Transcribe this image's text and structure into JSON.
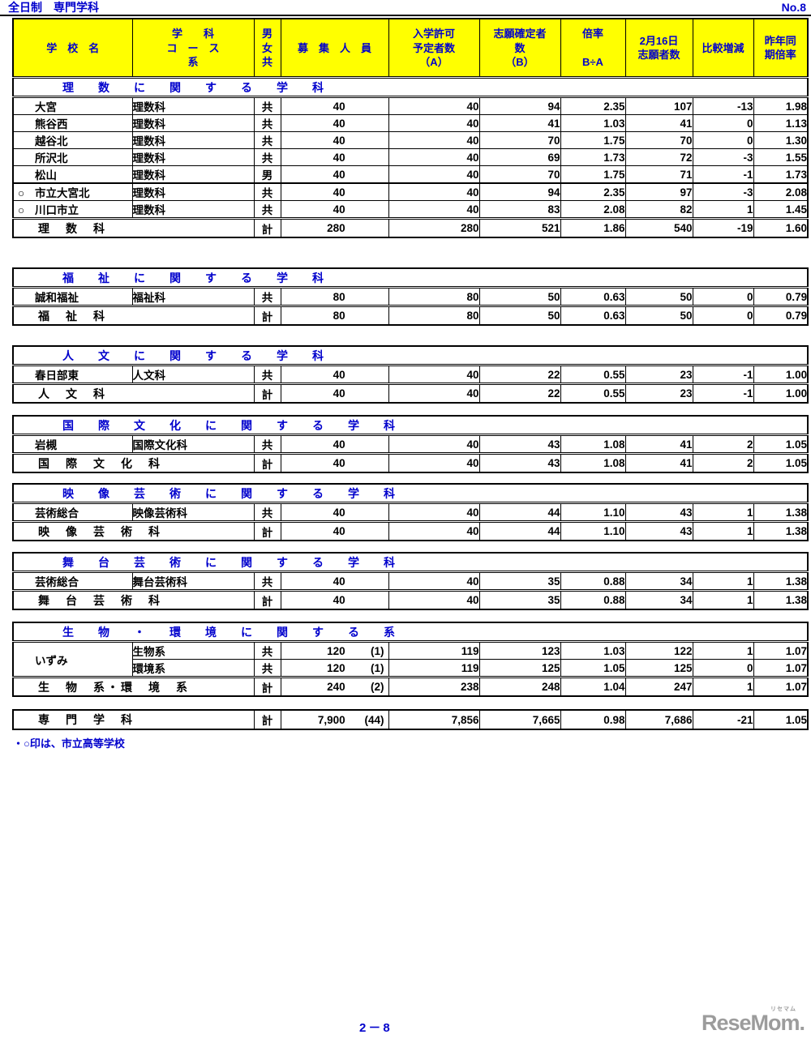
{
  "page": {
    "title": "全日制　専門学科",
    "no": "No.8",
    "footnote": "・○印は、市立高等学校",
    "page_number": "2－8"
  },
  "logo": {
    "text": "ReseMom.",
    "ruby": "リセマム"
  },
  "colors": {
    "header_bg": "#ffff00",
    "accent_blue": "#0000cc",
    "border_black": "#000000",
    "logo_gray": "#9c9c9c"
  },
  "columns": [
    {
      "id": "school",
      "lines": [
        "学　校　名"
      ]
    },
    {
      "id": "course",
      "lines": [
        "学　　科",
        "コ　ー　ス",
        "系"
      ]
    },
    {
      "id": "gender",
      "lines": [
        "男",
        "女",
        "共"
      ]
    },
    {
      "id": "recruit",
      "lines": [
        "募　集　人　員"
      ]
    },
    {
      "id": "admit",
      "lines": [
        "入学許可",
        "予定者数",
        "（A）"
      ]
    },
    {
      "id": "confirmed",
      "lines": [
        "志願確定者",
        "数",
        "（B）"
      ]
    },
    {
      "id": "ratio",
      "lines": [
        "倍率",
        "",
        "B÷A"
      ]
    },
    {
      "id": "feb16",
      "lines": [
        "2月16日",
        "志願者数"
      ]
    },
    {
      "id": "change",
      "lines": [
        "比較増減"
      ]
    },
    {
      "id": "lastyear",
      "lines": [
        "昨年同",
        "期倍率"
      ]
    }
  ],
  "municipal_marker": "○",
  "sections": [
    {
      "title": "理　数　に　関　す　る　学　科",
      "rows": [
        {
          "prefix": "",
          "school": "大宮",
          "course": "理数科",
          "gender": "共",
          "recruit": "40",
          "recruit_note": "",
          "admit": "40",
          "confirmed": "94",
          "ratio": "2.35",
          "feb16": "107",
          "change": "-13",
          "lastyear": "1.98"
        },
        {
          "prefix": "",
          "school": "熊谷西",
          "course": "理数科",
          "gender": "共",
          "recruit": "40",
          "recruit_note": "",
          "admit": "40",
          "confirmed": "41",
          "ratio": "1.03",
          "feb16": "41",
          "change": "0",
          "lastyear": "1.13"
        },
        {
          "prefix": "",
          "school": "越谷北",
          "course": "理数科",
          "gender": "共",
          "recruit": "40",
          "recruit_note": "",
          "admit": "40",
          "confirmed": "70",
          "ratio": "1.75",
          "feb16": "70",
          "change": "0",
          "lastyear": "1.30"
        },
        {
          "prefix": "",
          "school": "所沢北",
          "course": "理数科",
          "gender": "共",
          "recruit": "40",
          "recruit_note": "",
          "admit": "40",
          "confirmed": "69",
          "ratio": "1.73",
          "feb16": "72",
          "change": "-3",
          "lastyear": "1.55"
        },
        {
          "prefix": "",
          "school": "松山",
          "course": "理数科",
          "gender": "男",
          "recruit": "40",
          "recruit_note": "",
          "admit": "40",
          "confirmed": "70",
          "ratio": "1.75",
          "feb16": "71",
          "change": "-1",
          "lastyear": "1.73"
        },
        {
          "prefix": "○",
          "school": "市立大宮北",
          "course": "理数科",
          "gender": "共",
          "recruit": "40",
          "recruit_note": "",
          "admit": "40",
          "confirmed": "94",
          "ratio": "2.35",
          "feb16": "97",
          "change": "-3",
          "lastyear": "2.08",
          "separator_above": true
        },
        {
          "prefix": "○",
          "school": "川口市立",
          "course": "理数科",
          "gender": "共",
          "recruit": "40",
          "recruit_note": "",
          "admit": "40",
          "confirmed": "83",
          "ratio": "2.08",
          "feb16": "82",
          "change": "1",
          "lastyear": "1.45"
        }
      ],
      "total": {
        "label": "理　数　科",
        "gender": "計",
        "recruit": "280",
        "recruit_note": "",
        "admit": "280",
        "confirmed": "521",
        "ratio": "1.86",
        "feb16": "540",
        "change": "-19",
        "lastyear": "1.60"
      }
    },
    {
      "title": "福　祉　に　関　す　る　学　科",
      "rows": [
        {
          "prefix": "",
          "school": "誠和福祉",
          "course": "福祉科",
          "gender": "共",
          "recruit": "80",
          "recruit_note": "",
          "admit": "80",
          "confirmed": "50",
          "ratio": "0.63",
          "feb16": "50",
          "change": "0",
          "lastyear": "0.79"
        }
      ],
      "total": {
        "label": "福　祉　科",
        "gender": "計",
        "recruit": "80",
        "recruit_note": "",
        "admit": "80",
        "confirmed": "50",
        "ratio": "0.63",
        "feb16": "50",
        "change": "0",
        "lastyear": "0.79"
      }
    },
    {
      "title": "人　文　に　関　す　る　学　科",
      "rows": [
        {
          "prefix": "",
          "school": "春日部東",
          "course": "人文科",
          "gender": "共",
          "recruit": "40",
          "recruit_note": "",
          "admit": "40",
          "confirmed": "22",
          "ratio": "0.55",
          "feb16": "23",
          "change": "-1",
          "lastyear": "1.00"
        }
      ],
      "total": {
        "label": "人　文　科",
        "gender": "計",
        "recruit": "40",
        "recruit_note": "",
        "admit": "40",
        "confirmed": "22",
        "ratio": "0.55",
        "feb16": "23",
        "change": "-1",
        "lastyear": "1.00"
      }
    },
    {
      "title": "国　際　文　化　に　関　す　る　学　科",
      "rows": [
        {
          "prefix": "",
          "school": "岩槻",
          "course": "国際文化科",
          "gender": "共",
          "recruit": "40",
          "recruit_note": "",
          "admit": "40",
          "confirmed": "43",
          "ratio": "1.08",
          "feb16": "41",
          "change": "2",
          "lastyear": "1.05"
        }
      ],
      "total": {
        "label": "国　際　文　化　科",
        "gender": "計",
        "recruit": "40",
        "recruit_note": "",
        "admit": "40",
        "confirmed": "43",
        "ratio": "1.08",
        "feb16": "41",
        "change": "2",
        "lastyear": "1.05"
      }
    },
    {
      "title": "映　像　芸　術　に　関　す　る　学　科",
      "rows": [
        {
          "prefix": "",
          "school": "芸術総合",
          "course": "映像芸術科",
          "gender": "共",
          "recruit": "40",
          "recruit_note": "",
          "admit": "40",
          "confirmed": "44",
          "ratio": "1.10",
          "feb16": "43",
          "change": "1",
          "lastyear": "1.38"
        }
      ],
      "total": {
        "label": "映　像　芸　術　科",
        "gender": "計",
        "recruit": "40",
        "recruit_note": "",
        "admit": "40",
        "confirmed": "44",
        "ratio": "1.10",
        "feb16": "43",
        "change": "1",
        "lastyear": "1.38"
      }
    },
    {
      "title": "舞　台　芸　術　に　関　す　る　学　科",
      "rows": [
        {
          "prefix": "",
          "school": "芸術総合",
          "course": "舞台芸術科",
          "gender": "共",
          "recruit": "40",
          "recruit_note": "",
          "admit": "40",
          "confirmed": "35",
          "ratio": "0.88",
          "feb16": "34",
          "change": "1",
          "lastyear": "1.38"
        }
      ],
      "total": {
        "label": "舞　台　芸　術　科",
        "gender": "計",
        "recruit": "40",
        "recruit_note": "",
        "admit": "40",
        "confirmed": "35",
        "ratio": "0.88",
        "feb16": "34",
        "change": "1",
        "lastyear": "1.38"
      }
    },
    {
      "title": "生　物　・　環　境　に　関　す　る　系",
      "rows": [
        {
          "prefix": "",
          "school": "いずみ",
          "school_rowspan": 2,
          "course": "生物系",
          "gender": "共",
          "recruit": "120",
          "recruit_note": "(1)",
          "admit": "119",
          "confirmed": "123",
          "ratio": "1.03",
          "feb16": "122",
          "change": "1",
          "lastyear": "1.07"
        },
        {
          "prefix": "",
          "school": "",
          "skip_school": true,
          "course": "環境系",
          "gender": "共",
          "recruit": "120",
          "recruit_note": "(1)",
          "admit": "119",
          "confirmed": "125",
          "ratio": "1.05",
          "feb16": "125",
          "change": "0",
          "lastyear": "1.07"
        }
      ],
      "total": {
        "label": "生　物　系・環　境　系",
        "gender": "計",
        "recruit": "240",
        "recruit_note": "(2)",
        "admit": "238",
        "confirmed": "248",
        "ratio": "1.04",
        "feb16": "247",
        "change": "1",
        "lastyear": "1.07"
      }
    },
    {
      "title": null,
      "rows": [],
      "total": {
        "label": "専　門　学　科",
        "gender": "計",
        "recruit": "7,900",
        "recruit_note": "(44)",
        "admit": "7,856",
        "confirmed": "7,665",
        "ratio": "0.98",
        "feb16": "7,686",
        "change": "-21",
        "lastyear": "1.05"
      }
    }
  ]
}
